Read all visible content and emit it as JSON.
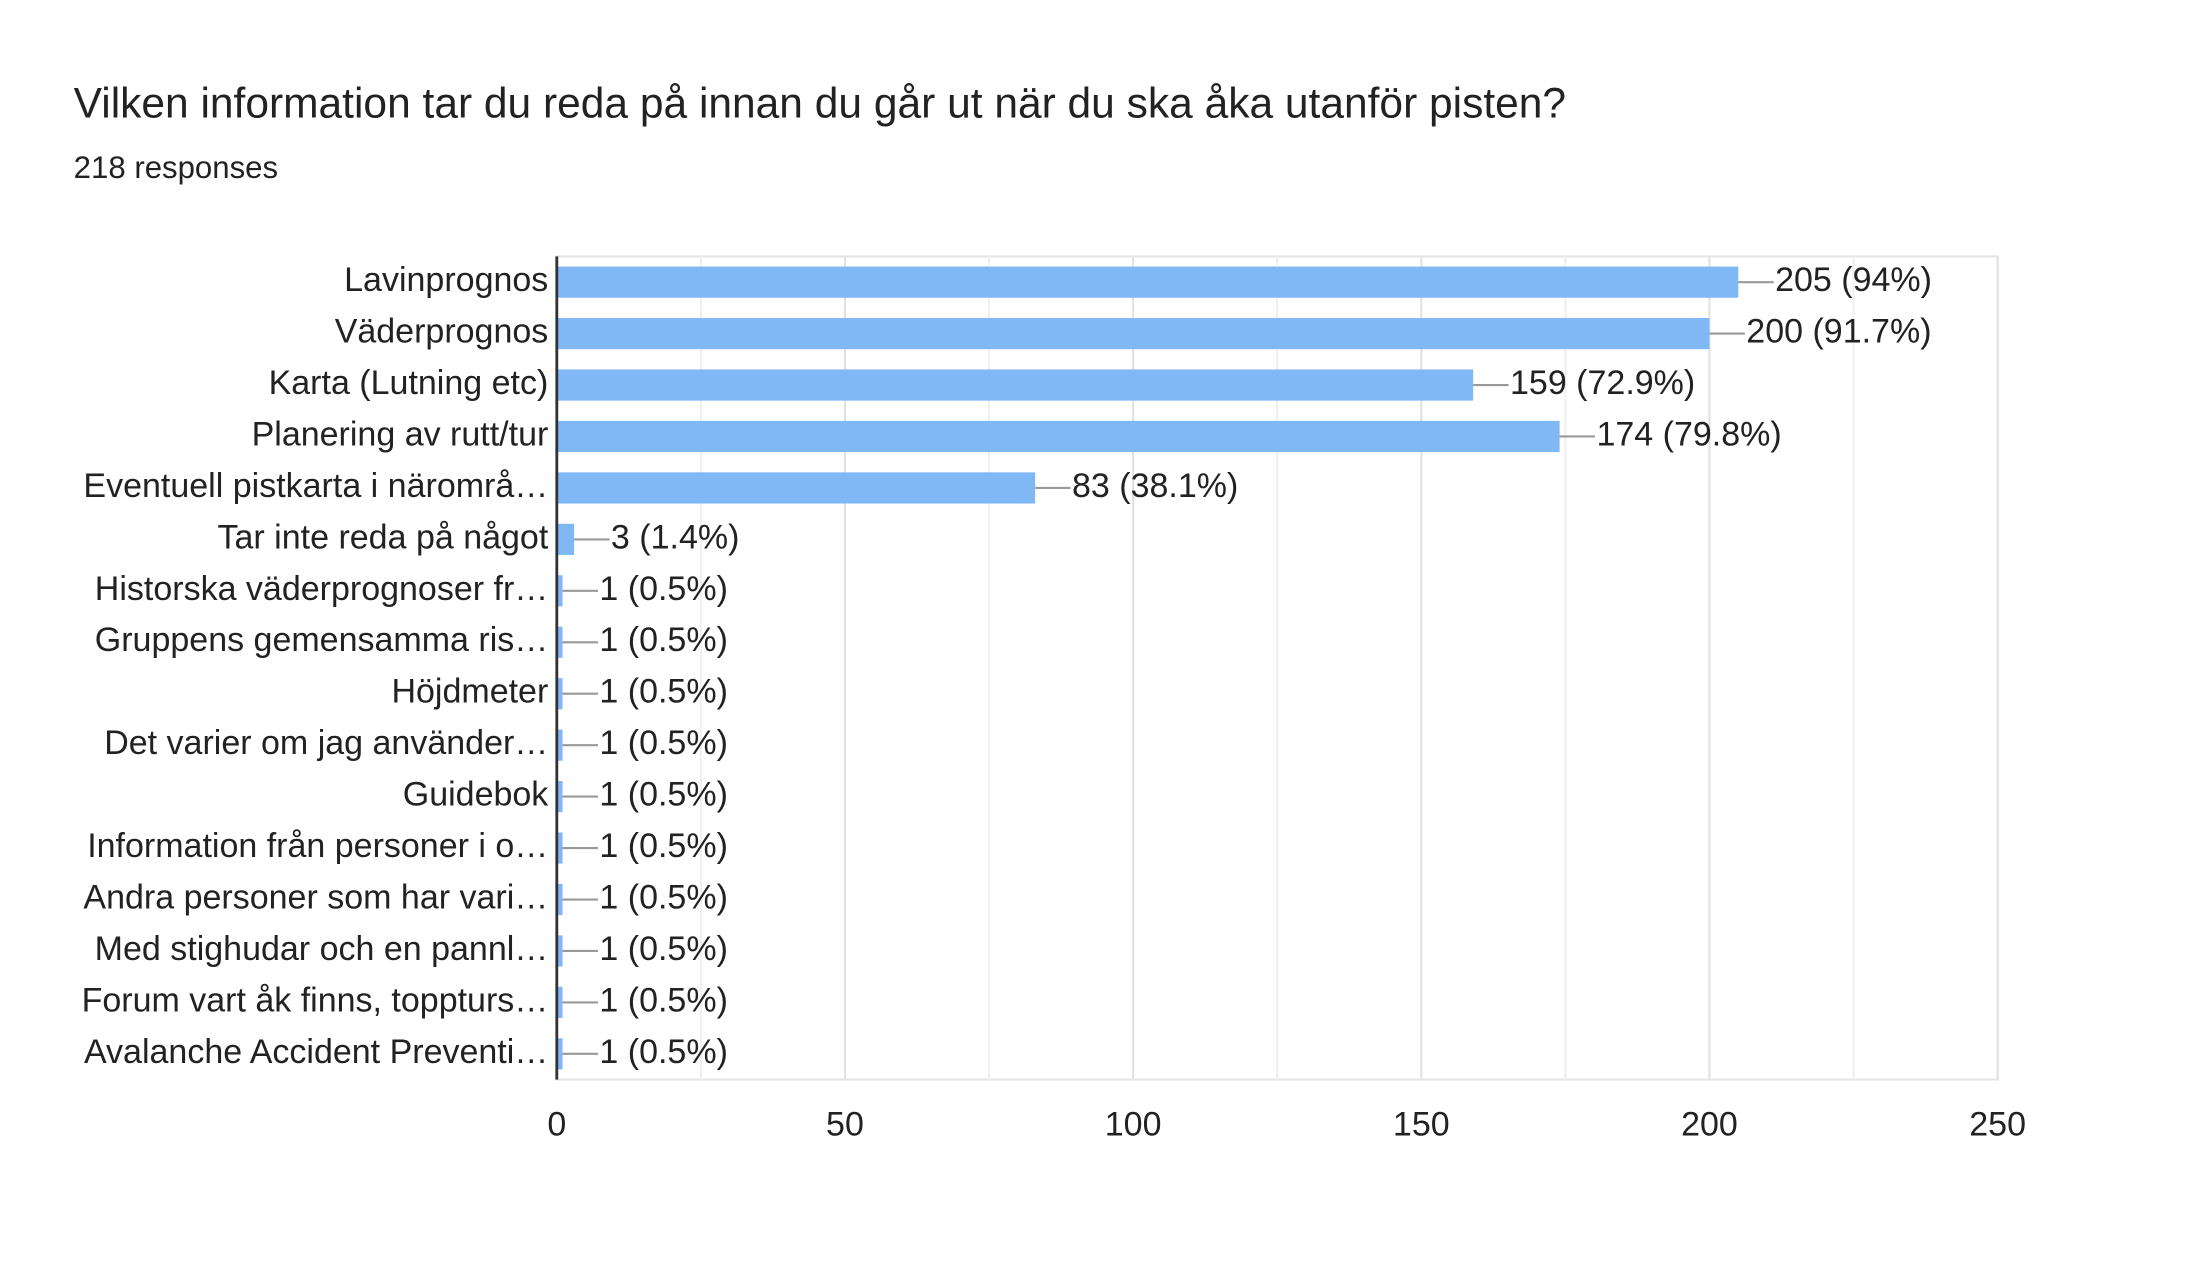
{
  "chart_data": {
    "type": "hbar",
    "title": "Vilken information tar du reda på innan du går ut när du ska åka utanför pisten?",
    "subtitle": "218 responses",
    "categories": [
      "Lavinprognos",
      "Väderprognos",
      "Karta (Lutning etc)",
      "Planering av rutt/tur",
      "Eventuell pistkarta i närområ…",
      "Tar inte reda på något",
      "Historska väderprognoser fr…",
      "Gruppens gemensamma ris…",
      "Höjdmeter",
      "Det varier om jag använder…",
      "Guidebok",
      "Information från personer i o…",
      "Andra personer som har vari…",
      "Med stighudar och en pannl…",
      "Forum vart åk finns, toppturs…",
      "Avalanche Accident Preventi…"
    ],
    "values": [
      205,
      200,
      159,
      174,
      83,
      3,
      1,
      1,
      1,
      1,
      1,
      1,
      1,
      1,
      1,
      1
    ],
    "value_labels": [
      "205 (94%)",
      "200 (91.7%)",
      "159 (72.9%)",
      "174 (79.8%)",
      "83 (38.1%)",
      "3 (1.4%)",
      "1 (0.5%)",
      "1 (0.5%)",
      "1 (0.5%)",
      "1 (0.5%)",
      "1 (0.5%)",
      "1 (0.5%)",
      "1 (0.5%)",
      "1 (0.5%)",
      "1 (0.5%)",
      "1 (0.5%)"
    ],
    "color": "#80b8f6",
    "xlim": [
      0,
      250
    ],
    "xticks": [
      0,
      50,
      100,
      150,
      200,
      250
    ],
    "minor_gridlines": [
      25,
      75,
      125,
      175,
      225
    ],
    "grid": true
  }
}
